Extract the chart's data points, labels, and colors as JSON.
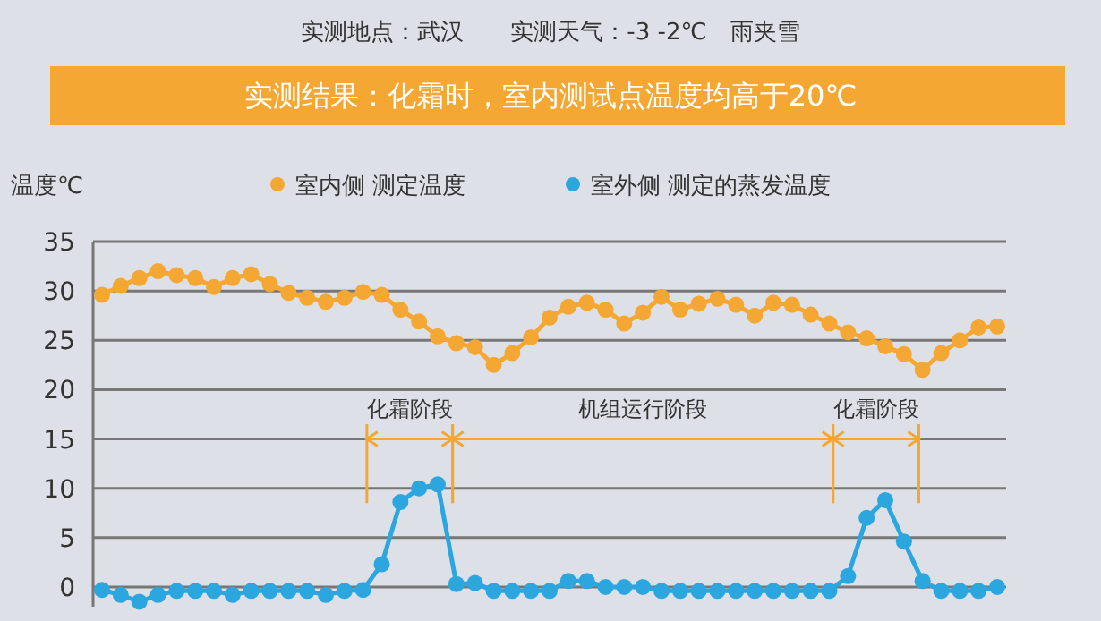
{
  "chart_data": {
    "type": "line",
    "title": "实测地点：武汉　　实测天气：-3 -2℃　雨夹雪",
    "subtitle": "实测结果：化霜时，室内测试点温度均高于20℃",
    "ylabel": "温度℃",
    "categories": [
      null,
      null,
      null,
      null,
      null,
      null,
      null,
      null,
      null,
      null,
      null,
      null,
      null,
      null,
      null,
      null,
      null,
      null,
      null,
      null,
      null,
      null,
      null,
      null,
      null,
      null,
      null,
      null,
      null,
      null,
      null,
      null,
      null,
      null,
      null,
      null,
      null,
      null,
      null,
      null,
      null,
      null,
      null,
      null,
      null,
      null,
      null,
      null,
      null
    ],
    "series": [
      {
        "name": "室内侧 测定温度",
        "color": "#f5a733",
        "values": [
          29.6,
          30.5,
          31.3,
          32.0,
          31.6,
          31.3,
          30.4,
          31.3,
          31.7,
          30.7,
          29.8,
          29.3,
          28.9,
          29.3,
          29.9,
          29.6,
          28.1,
          26.9,
          25.4,
          24.7,
          24.3,
          22.5,
          23.7,
          25.3,
          27.3,
          28.4,
          28.8,
          28.1,
          26.7,
          27.8,
          29.4,
          28.1,
          28.7,
          29.2,
          28.6,
          27.5,
          28.8,
          28.6,
          27.6,
          26.7,
          25.8,
          25.2,
          24.4,
          23.6,
          22.0,
          23.7,
          25.0,
          26.3,
          26.4
        ]
      },
      {
        "name": "室外侧 测定的蒸发温度",
        "color": "#2ba6de",
        "values": [
          -0.3,
          -0.8,
          -1.5,
          -0.8,
          -0.4,
          -0.4,
          -0.4,
          -0.8,
          -0.4,
          -0.4,
          -0.4,
          -0.4,
          -0.8,
          -0.4,
          -0.3,
          2.3,
          8.6,
          10.0,
          10.4,
          0.3,
          0.4,
          -0.4,
          -0.4,
          -0.4,
          -0.4,
          0.6,
          0.6,
          0.0,
          0.0,
          0.0,
          -0.4,
          -0.4,
          -0.4,
          -0.4,
          -0.4,
          -0.4,
          -0.4,
          -0.4,
          -0.4,
          -0.4,
          1.1,
          7.0,
          8.8,
          4.6,
          0.6,
          -0.4,
          -0.4,
          -0.4,
          0.0
        ]
      }
    ],
    "annotations": [
      "化霜阶段",
      "机组运行阶段",
      "化霜阶段"
    ],
    "ylim": [
      -2,
      35
    ],
    "yticks": [
      0,
      5,
      10,
      15,
      20,
      25,
      30,
      35
    ],
    "grid": "y",
    "legend": "top",
    "marker": "circle",
    "line_style": "solid"
  }
}
